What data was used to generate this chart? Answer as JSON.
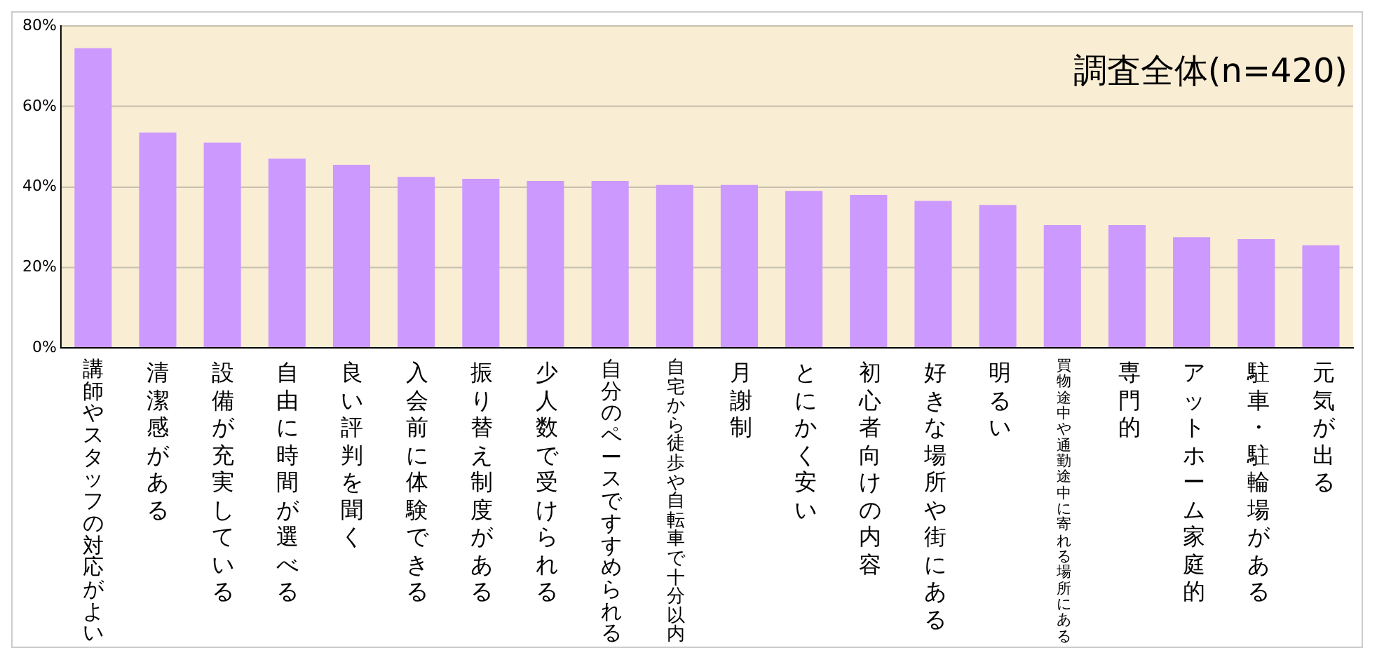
{
  "chart_data": {
    "type": "bar",
    "title": "調査全体(n=420)",
    "categories": [
      "講師やスタッフの対応がよい",
      "清潔感がある",
      "設備が充実している",
      "自由に時間が選べる",
      "良い評判を聞く",
      "入会前に体験できる",
      "振り替え制度がある",
      "少人数で受けられる",
      "自分のペースですすめられる",
      "自宅から徒歩や自転車で十分以内",
      "月謝制",
      "とにかく安い",
      "初心者向けの内容",
      "好きな場所や街にある",
      "明るい",
      "買物途中や通勤途中に寄れる場所にある",
      "専門的",
      "アットホーム家庭的",
      "駐車・駐輪場がある",
      "元気が出る"
    ],
    "values": [
      74.5,
      53.5,
      51,
      47,
      45.5,
      42.5,
      42,
      41.5,
      41.5,
      40.5,
      40.5,
      39,
      38,
      36.5,
      35.5,
      30.5,
      30.5,
      27.5,
      27,
      25.5
    ],
    "color": "#cc99ff",
    "ylim": [
      0,
      80
    ],
    "yticks": [
      {
        "value": 0,
        "label": "0%"
      },
      {
        "value": 20,
        "label": "20%"
      },
      {
        "value": 40,
        "label": "40%"
      },
      {
        "value": 60,
        "label": "60%"
      },
      {
        "value": 80,
        "label": "80%"
      }
    ],
    "grid": "y",
    "legend": false
  }
}
